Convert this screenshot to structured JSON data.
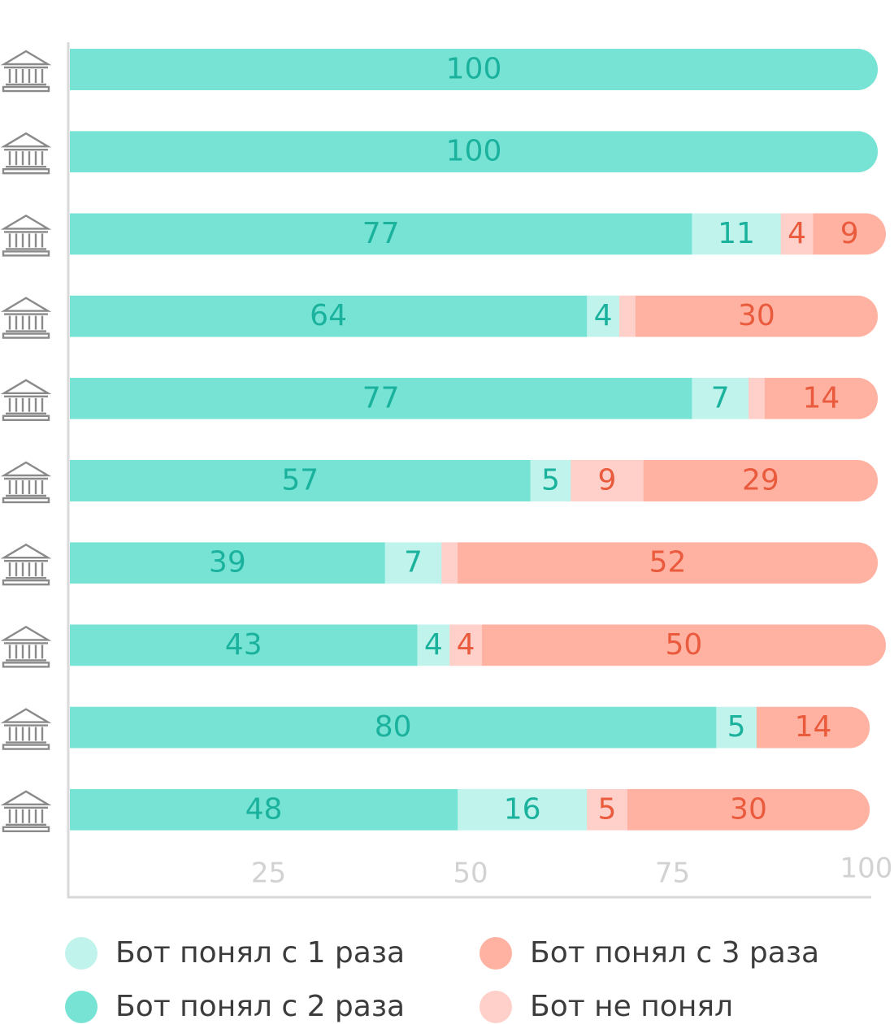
{
  "chart_data": {
    "type": "bar",
    "orientation": "horizontal",
    "stacked": true,
    "categories": [
      "",
      "",
      "",
      "",
      "",
      "",
      "",
      "",
      "",
      ""
    ],
    "category_icon": "bank-building-icon",
    "series": [
      {
        "name": "Бот понял с 2 раза",
        "key": "second",
        "color": "#77e3d4",
        "label_color": "#1ab29d",
        "values": [
          100,
          100,
          77,
          64,
          77,
          57,
          39,
          43,
          80,
          48
        ]
      },
      {
        "name": "Бот понял с 1 раза",
        "key": "first",
        "color": "#bff3ec",
        "label_color": "#1ab29d",
        "values": [
          0,
          0,
          11,
          4,
          7,
          5,
          7,
          4,
          5,
          16
        ]
      },
      {
        "name": "Бот не понял",
        "key": "not",
        "color": "#ffd0c9",
        "label_color": "#ea5a3c",
        "values": [
          0,
          0,
          4,
          2,
          2,
          9,
          2,
          4,
          0,
          5
        ]
      },
      {
        "name": "Бот понял с 3 раза",
        "key": "third",
        "color": "#ffb2a2",
        "label_color": "#ea5a3c",
        "values": [
          0,
          0,
          9,
          30,
          14,
          29,
          52,
          50,
          14,
          30
        ]
      }
    ],
    "labels": [
      {
        "second": "100"
      },
      {
        "second": "100"
      },
      {
        "second": "77",
        "first": "11",
        "not": "4",
        "third": "9"
      },
      {
        "second": "64",
        "first": "4",
        "third": "30"
      },
      {
        "second": "77",
        "first": "7",
        "third": "14"
      },
      {
        "second": "57",
        "first": "5",
        "not": "9",
        "third": "29"
      },
      {
        "second": "39",
        "first": "7",
        "third": "52"
      },
      {
        "second": "43",
        "first": "4",
        "not": "4",
        "third": "50"
      },
      {
        "second": "80",
        "first": "5",
        "third": "14"
      },
      {
        "second": "48",
        "first": "16",
        "not": "5",
        "third": "30"
      }
    ],
    "xlim": [
      0,
      100
    ],
    "xticks": [
      {
        "value": 25,
        "label": "25"
      },
      {
        "value": 50,
        "label": "50"
      },
      {
        "value": 75,
        "label": "75"
      },
      {
        "value": 100,
        "label": "100"
      }
    ],
    "grid": false,
    "legend_position": "bottom",
    "axis_color": "#d9d9d9",
    "icon_color": "#8a8a8a"
  },
  "legend": {
    "items": [
      {
        "label": "Бот понял с 1 раза",
        "color": "#bff3ec"
      },
      {
        "label": "Бот понял с 3 раза",
        "color": "#ffb2a2"
      },
      {
        "label": "Бот понял с 2 раза",
        "color": "#77e3d4"
      },
      {
        "label": "Бот не понял",
        "color": "#ffd0c9"
      }
    ]
  }
}
